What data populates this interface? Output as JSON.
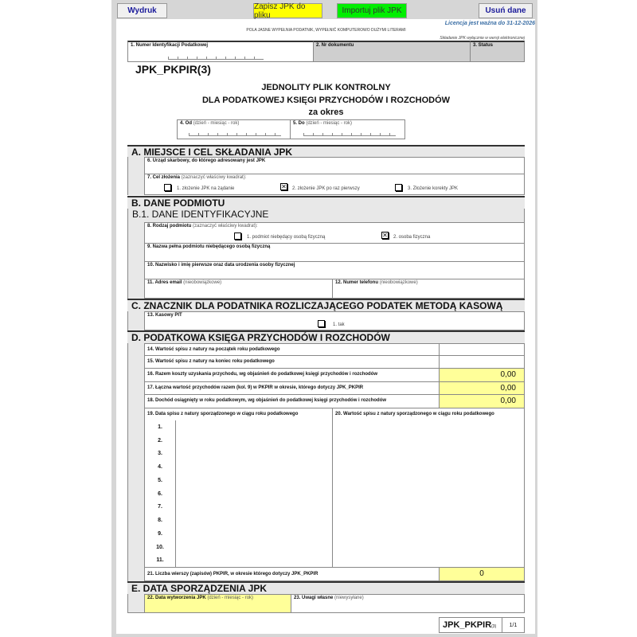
{
  "toolbar": {
    "print": "Wydruk",
    "save": "Zapisz JPK do pliku",
    "import": "Importuj plik JPK",
    "clear": "Usuń dane"
  },
  "license": "Licencja jest ważna do 31-12-2026",
  "instruction": "POLA JASNE WYPEŁNIA PODATNIK, WYPEŁNIĆ KOMPUTEROWO DUŻYMI LITERAMI",
  "electronic_note": "Składanie JPK wyłącznie w wersji elektronicznej",
  "header": {
    "f1": "1. Numer Identyfikacji Podatkowej",
    "f2": "2. Nr dokumentu",
    "f3": "3. Status"
  },
  "form_code": "JPK_PKPIR(3)",
  "title": {
    "line1": "JEDNOLITY PLIK KONTROLNY",
    "line2": "DLA PODATKOWEJ KSIĘGI PRZYCHODÓW I ROZCHODÓW",
    "period": "za okres"
  },
  "period": {
    "from_label": "4. Od",
    "to_label": "5. Do",
    "hint": "(dzień - miesiąc - rok)"
  },
  "secA": {
    "title": "A. MIEJSCE I CEL SKŁADANIA JPK",
    "f6": "6. Urząd skarbowy, do którego adresowany jest JPK",
    "f7": "7. Cel złożenia",
    "f7_hint": "(zaznaczyć właściwy kwadrat):",
    "opt1": "1. złożenie JPK na żądanie",
    "opt2": "2. złożenie JPK po raz pierwszy",
    "opt3": "3. Złożenie korekty JPK",
    "selected": 2
  },
  "secB": {
    "title": "B. DANE PODMIOTU",
    "sub": "B.1. DANE IDENTYFIKACYJNE",
    "f8": "8. Rodzaj podmiotu",
    "f8_hint": "(zaznaczyć właściwy kwadrat):",
    "opt1": "1. podmiot niebędący osobą fizyczną",
    "opt2": "2. osoba fizyczna",
    "selected": 2,
    "f9": "9. Nazwa pełna podmiotu niebędącego osobą fizyczną",
    "f10": "10. Nazwisko i imię pierwsze oraz data urodzenia osoby fizycznej",
    "f11": "11. Adres email",
    "f12": "12. Numer telefonu",
    "optional": "(nieobowiązkowe)"
  },
  "secC": {
    "title": "C. ZNACZNIK DLA PODATNIKA ROZLICZAJĄCEGO PODATEK METODĄ KASOWĄ",
    "f13": "13. Kasowy PIT",
    "opt1": "1. tak"
  },
  "secD": {
    "title": "D. PODATKOWA KSIĘGA PRZYCHODÓW I ROZCHODÓW",
    "rows": [
      {
        "label": "14. Wartość spisu z natury na początek roku podatkowego",
        "value": ""
      },
      {
        "label": "15. Wartość spisu z natury na koniec roku podatkowego",
        "value": ""
      },
      {
        "label": "16. Razem koszty uzyskania przychodu, wg objaśnień do podatkowej księgi przychodów i rozchodów",
        "value": "0,00"
      },
      {
        "label": "17. Łączna wartość przychodów razem (kol. 9) w PKPIR w okresie, którego dotyczy JPK_PKPIR",
        "value": "0,00"
      },
      {
        "label": "18. Dochód osiągnięty w roku podatkowym, wg objaśnień do podatkowej księgi przychodów i rozchodów",
        "value": "0,00"
      }
    ],
    "f19": "19. Data spisu z natury sporządzonego w ciągu roku podatkowego",
    "f20": "20. Wartość spisu z natury sporządzonego w ciągu roku podatkowego",
    "numbers": [
      "1.",
      "2.",
      "3.",
      "4.",
      "5.",
      "6.",
      "7.",
      "8.",
      "9.",
      "10.",
      "11."
    ],
    "f21": "21. Liczba wierszy (zapisów) PKPIR, w okresie którego dotyczy JPK_PKPIR",
    "f21_value": "0"
  },
  "secE": {
    "title": "E. DATA SPORZĄDZENIA JPK",
    "f22": "22. Data wytworzenia JPK",
    "f22_hint": "(dzień - miesiąc - rok)",
    "f23": "23. Uwagi własne",
    "f23_hint": "(niewysyłane)"
  },
  "footer": {
    "code": "JPK_PKPIR",
    "version": "(3)",
    "page": "1/1"
  }
}
